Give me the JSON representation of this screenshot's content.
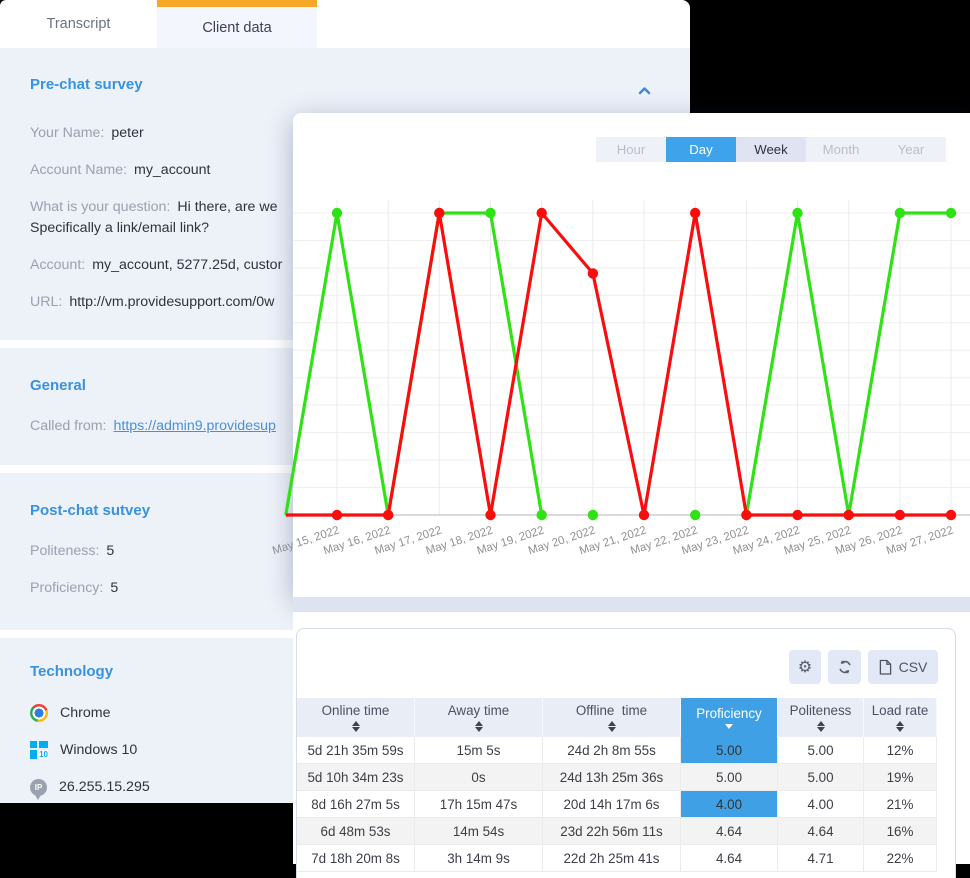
{
  "left_panel": {
    "tabs": [
      {
        "label": "Transcript"
      },
      {
        "label": "Client data",
        "active": true
      }
    ],
    "sections": {
      "pre_chat": {
        "title": "Pre-chat survey",
        "fields": {
          "your_name": {
            "label": "Your Name:",
            "value": "peter"
          },
          "account_name": {
            "label": "Account Name:",
            "value": "my_account"
          },
          "question": {
            "label": "What is your question:",
            "value": "Hi there, are we",
            "value_line2": "Specifically a link/email link?"
          },
          "account": {
            "label": "Account:",
            "value": "my_account, 5277.25d, custor"
          },
          "url": {
            "label": "URL:",
            "value": "http://vm.providesupport.com/0w"
          }
        }
      },
      "general": {
        "title": "General",
        "fields": {
          "called_from": {
            "label": "Called from:",
            "value": "https://admin9.providesup"
          }
        }
      },
      "post_chat": {
        "title": "Post-chat sutvey",
        "fields": {
          "politeness": {
            "label": "Politeness:",
            "value": "5"
          },
          "proficiency": {
            "label": "Proficiency:",
            "value": "5"
          }
        }
      },
      "technology": {
        "title": "Technology",
        "items": [
          {
            "icon": "chrome-icon",
            "label": "Chrome"
          },
          {
            "icon": "windows-10-icon",
            "label": "Windows 10"
          },
          {
            "icon": "ip-address-icon",
            "label": "26.255.15.295"
          }
        ]
      }
    }
  },
  "chart_panel": {
    "period_tabs": [
      {
        "label": "Hour",
        "state": "muted"
      },
      {
        "label": "Day",
        "state": "active"
      },
      {
        "label": "Week",
        "state": "normal"
      },
      {
        "label": "Month",
        "state": "muted"
      },
      {
        "label": "Year",
        "state": "muted"
      }
    ]
  },
  "chart_data": {
    "type": "line",
    "x_labels": [
      "May 15, 2022",
      "May 16, 2022",
      "May 17, 2022",
      "May 18, 2022",
      "May 19, 2022",
      "May 20, 2022",
      "May 21, 2022",
      "May 22, 2022",
      "May 23, 2022",
      "May 24, 2022",
      "May 25, 2022",
      "May 26, 2022",
      "May 27, 2022"
    ],
    "y_range": [
      0,
      1
    ],
    "grid": true,
    "legend": "none",
    "series": [
      {
        "name": "green",
        "color": "#2fe214",
        "values": [
          1,
          0,
          1,
          1,
          0,
          0,
          null,
          0,
          0,
          1,
          0,
          1,
          1
        ],
        "segments": [
          [
            [
              -1,
              0
            ],
            [
              0,
              1
            ],
            [
              1,
              0
            ],
            [
              2,
              1
            ],
            [
              3,
              1
            ],
            [
              4,
              0
            ]
          ],
          [
            [
              8,
              0
            ],
            [
              9,
              1
            ],
            [
              10,
              0
            ],
            [
              11,
              1
            ],
            [
              12,
              1
            ]
          ]
        ],
        "dots": [
          [
            0,
            1
          ],
          [
            1,
            0
          ],
          [
            2,
            1
          ],
          [
            3,
            1
          ],
          [
            4,
            0
          ],
          [
            5,
            0
          ],
          [
            7,
            0
          ],
          [
            8,
            0
          ],
          [
            9,
            1
          ],
          [
            10,
            0
          ],
          [
            11,
            1
          ],
          [
            12,
            1
          ]
        ]
      },
      {
        "name": "red",
        "color": "#f90d0d",
        "values": [
          0,
          0,
          1,
          0,
          1,
          0.8,
          0,
          1,
          0,
          0,
          0,
          0,
          0
        ],
        "segments": [
          [
            [
              -1,
              0
            ],
            [
              0,
              0
            ],
            [
              1,
              0
            ],
            [
              2,
              1
            ],
            [
              3,
              0
            ],
            [
              4,
              1
            ],
            [
              5,
              0.8
            ],
            [
              6,
              0
            ],
            [
              7,
              1
            ],
            [
              8,
              0
            ],
            [
              9,
              0
            ],
            [
              10,
              0
            ],
            [
              11,
              0
            ],
            [
              12,
              0
            ]
          ]
        ],
        "dots": [
          [
            0,
            0
          ],
          [
            1,
            0
          ],
          [
            2,
            1
          ],
          [
            3,
            0
          ],
          [
            4,
            1
          ],
          [
            5,
            0.8
          ],
          [
            6,
            0
          ],
          [
            7,
            1
          ],
          [
            8,
            0
          ],
          [
            9,
            0
          ],
          [
            10,
            0
          ],
          [
            11,
            0
          ],
          [
            12,
            0
          ]
        ]
      }
    ]
  },
  "table": {
    "toolbar": {
      "csv_label": "CSV"
    },
    "columns": [
      {
        "label": "Online time",
        "sort": "none"
      },
      {
        "label": "Away time",
        "sort": "none"
      },
      {
        "label": "Offline  time",
        "sort": "none"
      },
      {
        "label": "Proficiency",
        "sort": "desc",
        "active": true
      },
      {
        "label": "Politeness",
        "sort": "none"
      },
      {
        "label": "Load rate",
        "sort": "none"
      }
    ],
    "rows": [
      [
        "5d 21h 35m 59s",
        "15m 5s",
        "24d 2h 8m 55s",
        "5.00",
        "5.00",
        "12%"
      ],
      [
        "5d 10h 34m 23s",
        "0s",
        "24d 13h 25m 36s",
        "5.00",
        "5.00",
        "19%"
      ],
      [
        "8d 16h 27m 5s",
        "17h 15m 47s",
        "20d 14h 17m 6s",
        "4.00",
        "4.00",
        "21%"
      ],
      [
        "6d 48m 53s",
        "14m 54s",
        "23d 22h 56m 11s",
        "4.64",
        "4.64",
        "16%"
      ],
      [
        "7d 18h 20m 8s",
        "3h 14m 9s",
        "22d 2h 25m 41s",
        "4.64",
        "4.71",
        "22%"
      ]
    ],
    "proficiency_highlight_rows": [
      0,
      2
    ]
  },
  "colors": {
    "accent_blue": "#3fa3ec",
    "accent_orange": "#f7a728",
    "series_red": "#f90d0d",
    "series_green": "#2fe214",
    "highlight_cell": "#3fa0e6",
    "link": "#4a90d9"
  }
}
